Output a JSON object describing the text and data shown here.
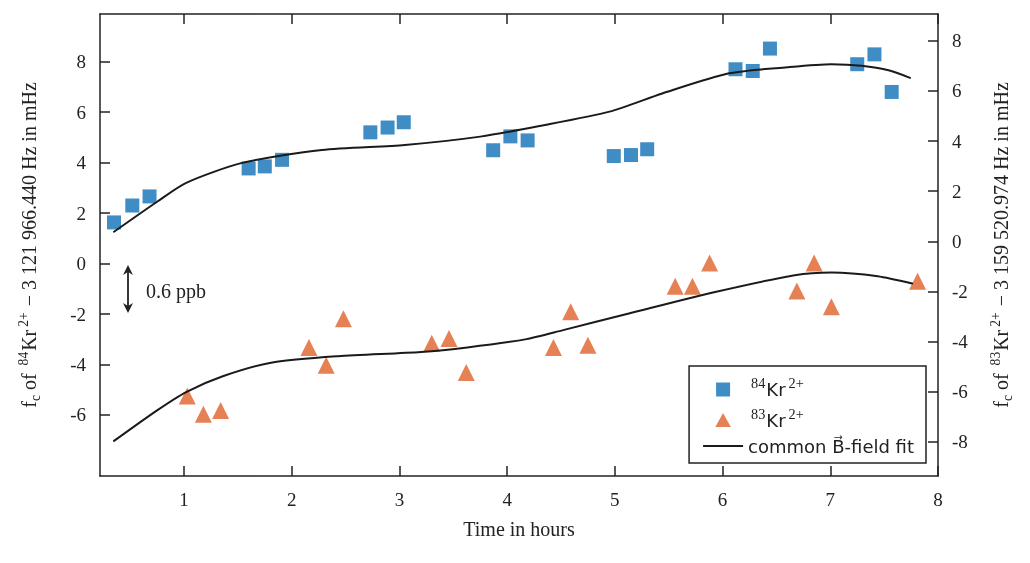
{
  "chart_data": {
    "type": "scatter",
    "xlabel": "Time in hours",
    "ylabel": "f$_{c}$ of $^{84}$Kr$^{2+}$ − 3 121 966.440 Hz in mHz",
    "y2label": "f$_{c}$ of $^{83}$Kr$^{2+}$ − 3 159 520.974 Hz in mHz",
    "xlim": [
      0.22,
      8
    ],
    "xticks": [
      1,
      2,
      3,
      4,
      5,
      6,
      7,
      8
    ],
    "ylim": [
      -8.42,
      9.89
    ],
    "yticks": [
      -6,
      -4,
      -2,
      0,
      2,
      4,
      6,
      8
    ],
    "y2lim": [
      -9.36,
      9.07
    ],
    "y2ticks": [
      -8,
      -6,
      -4,
      -2,
      0,
      2,
      4,
      6,
      8
    ],
    "grid": false,
    "legend": "bottom right",
    "annotations": [
      "0.6 ppb"
    ],
    "series": [
      {
        "name": "$^{84}$Kr$^{2+}$",
        "type": "scatter",
        "marker": "square",
        "color": "#1070b8",
        "x": [
          0.35,
          0.52,
          0.68,
          1.6,
          1.75,
          1.91,
          2.73,
          2.89,
          3.04,
          3.87,
          4.03,
          4.19,
          4.99,
          5.15,
          5.3,
          6.12,
          6.28,
          6.44,
          7.25,
          7.41,
          7.57
        ],
        "values": [
          1.63,
          2.3,
          2.66,
          3.77,
          3.85,
          4.11,
          5.2,
          5.39,
          5.6,
          4.49,
          5.04,
          4.88,
          4.26,
          4.3,
          4.53,
          7.7,
          7.63,
          8.52,
          7.9,
          8.29,
          6.8
        ]
      },
      {
        "name": "$^{83}$Kr$^{2+}$",
        "type": "scatter",
        "marker": "triangle",
        "axis": "y2",
        "color": "#e0622a",
        "x": [
          1.03,
          1.18,
          1.34,
          2.16,
          2.32,
          2.48,
          3.3,
          3.46,
          3.62,
          4.43,
          4.59,
          4.75,
          5.56,
          5.72,
          5.88,
          6.69,
          6.85,
          7.01,
          7.81
        ],
        "values": [
          -6.17,
          -6.9,
          -6.75,
          -4.23,
          -4.94,
          -3.09,
          -4.06,
          -3.87,
          -5.23,
          -4.23,
          -2.81,
          -4.14,
          -1.79,
          -1.79,
          -0.86,
          -1.98,
          -0.86,
          -2.61,
          -1.59
        ]
      },
      {
        "name": "common B⃗-field fit",
        "type": "line",
        "marker": "none",
        "color": "#1a1a1a",
        "x": [
          0.35,
          0.75,
          1.02,
          1.54,
          2.28,
          3.05,
          3.75,
          4.3,
          4.95,
          5.44,
          6.06,
          6.6,
          7.01,
          7.29,
          7.55,
          7.74
        ],
        "values": [
          1.26,
          2.45,
          3.2,
          3.99,
          4.5,
          4.7,
          5.03,
          5.45,
          6.02,
          6.74,
          7.54,
          7.78,
          7.9,
          7.84,
          7.65,
          7.36
        ]
      },
      {
        "type": "line",
        "marker": "none",
        "axis": "y2",
        "color": "#1a1a1a",
        "x": [
          0.35,
          0.75,
          1.02,
          1.36,
          1.82,
          2.43,
          3.2,
          3.63,
          4.18,
          4.52,
          5.13,
          5.9,
          6.67,
          7.01,
          7.44,
          7.76
        ],
        "values": [
          -7.96,
          -6.74,
          -6.01,
          -5.38,
          -4.83,
          -4.58,
          -4.41,
          -4.23,
          -3.9,
          -3.54,
          -2.88,
          -2.05,
          -1.35,
          -1.24,
          -1.39,
          -1.68
        ]
      }
    ]
  }
}
